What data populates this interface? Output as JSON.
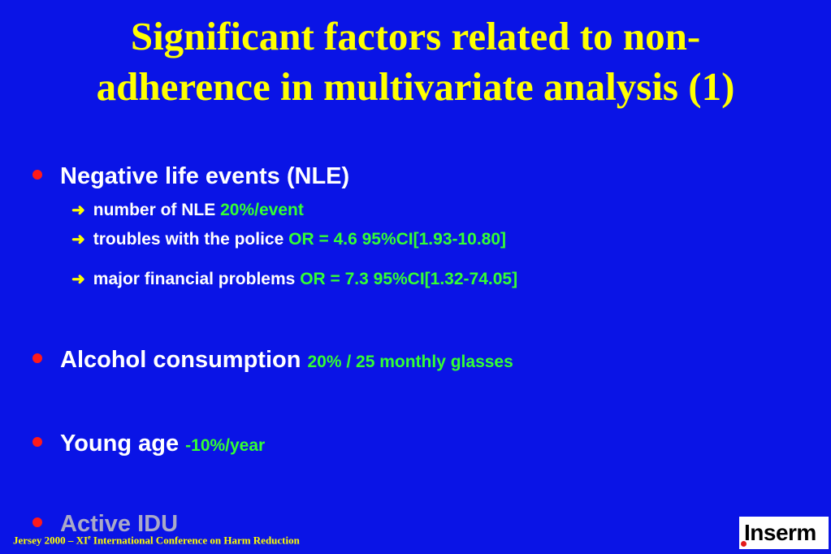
{
  "title": {
    "line1": "Significant factors related to non-",
    "line2": "adherence in multivariate analysis (1)"
  },
  "bullets": [
    {
      "label": "Negative life events (NLE)",
      "value": "",
      "subitems": [
        {
          "label": "number of NLE",
          "value": "20%/event"
        },
        {
          "label": "troubles with the police",
          "value": "OR = 4.6 95%CI[1.93-10.80]"
        },
        {
          "label": "major financial problems",
          "value": "OR = 7.3 95%CI[1.32-74.05]"
        }
      ]
    },
    {
      "label": "Alcohol consumption",
      "value": "20% / 25 monthly glasses"
    },
    {
      "label": "Young age",
      "value": "-10%/year"
    },
    {
      "label": "Active IDU",
      "value": ""
    }
  ],
  "footer": {
    "text_before": "Jersey 2000 – XI",
    "superscript": "e",
    "text_after": " International Conference on Harm Reduction"
  },
  "logo": {
    "text": "Inserm"
  },
  "colors": {
    "background": "#0a14e6",
    "title": "#ffff00",
    "value": "#33ff33",
    "bullet_dot": "#ff1a1a",
    "arrow": "#ffff00"
  },
  "icons": {
    "bullet": "red-dot-icon",
    "subbullet": "arrow-right-icon"
  }
}
